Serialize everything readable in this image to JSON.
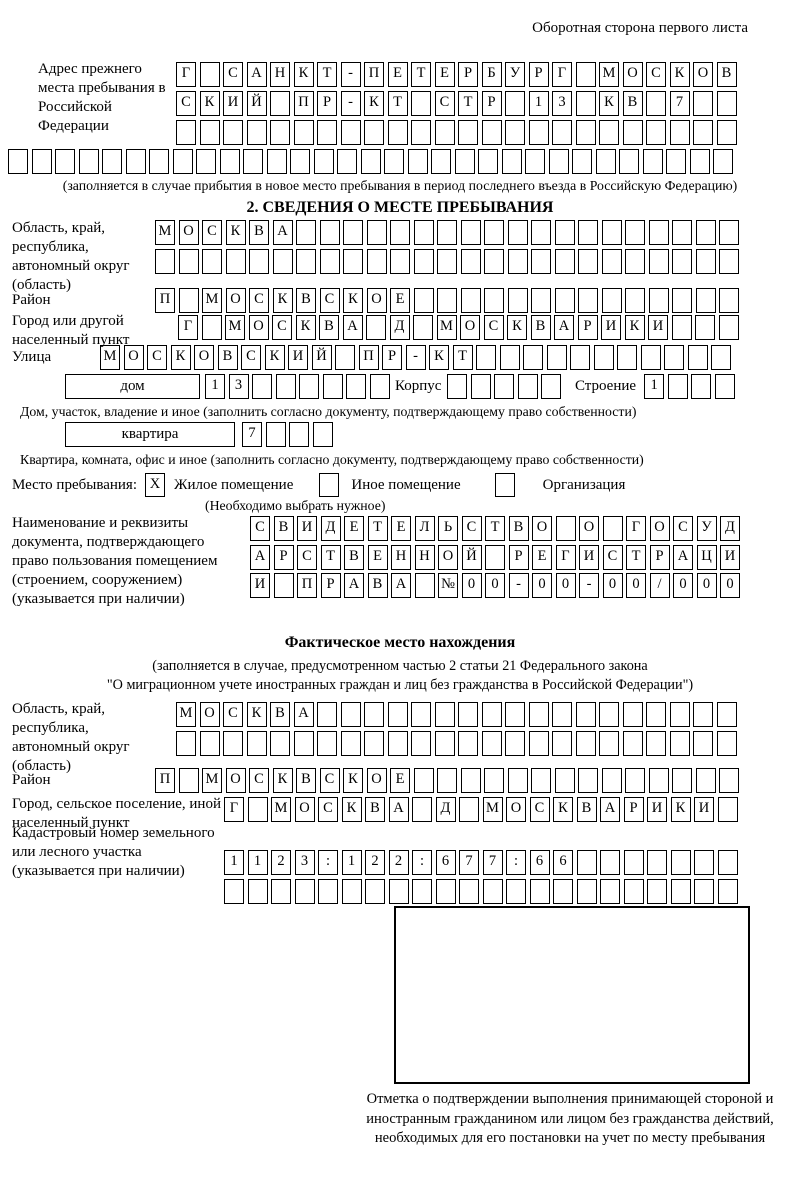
{
  "corner_note": "Оборотная сторона первого листа",
  "prev_address": {
    "label": "Адрес прежнего места пребывания в Российской Федерации",
    "row1": {
      "chars": "Г САНКТ-ПЕТЕРБУРГ МОСКОВ",
      "count": 24
    },
    "row2": {
      "chars": "СКИЙ ПР-КТ СТР 13 КВ 7",
      "count": 24
    },
    "row3": {
      "chars": "",
      "count": 24
    },
    "row4": {
      "chars": "",
      "count": 31
    },
    "note": "(заполняется в случае прибытия в новое место пребывания в период последнего въезда в Российскую Федерацию)"
  },
  "section2": {
    "title": "2. СВЕДЕНИЯ О МЕСТЕ ПРЕБЫВАНИЯ",
    "oblast": {
      "label": "Область, край, республика, автономный округ (область)",
      "row1": {
        "chars": "МОСКВА",
        "count": 25
      },
      "row2": {
        "chars": "",
        "count": 25
      }
    },
    "raion": {
      "label": "Район",
      "row": {
        "chars": "П МОСКВСКОЕ",
        "count": 25
      }
    },
    "gorod": {
      "label": "Город или другой населенный пункт",
      "row": {
        "chars": "Г МОСКВА Д МОСКВАРИКИ",
        "count": 24
      }
    },
    "ulitsa": {
      "label": "Улица",
      "row": {
        "chars": "МОСКОВСКИЙ ПР-КТ",
        "count": 27
      }
    },
    "dom": {
      "box_label": "дом",
      "cells": {
        "chars": "13",
        "count": 8
      },
      "korpus_label": "Корпус",
      "korpus_cells": {
        "chars": "",
        "count": 5
      },
      "stroenie_label": "Строение",
      "stroenie_cells": {
        "chars": "1",
        "count": 4
      },
      "note": "Дом, участок, владение и иное (заполнить согласно документу, подтверждающему право собственности)"
    },
    "kvartira": {
      "box_label": "квартира",
      "cells": {
        "chars": "7",
        "count": 4
      },
      "note": "Квартира, комната, офис и иное (заполнить согласно документу, подтверждающему право собственности)"
    },
    "mesto": {
      "label": "Место пребывания:",
      "options": [
        {
          "label": "Жилое помещение",
          "mark": "X"
        },
        {
          "label": "Иное помещение",
          "mark": ""
        },
        {
          "label": "Организация",
          "mark": ""
        }
      ],
      "note": "(Необходимо выбрать нужное)"
    },
    "doc": {
      "label": "Наименование и реквизиты документа, подтверждающего право пользования помещением (строением, сооружением) (указывается при наличии)",
      "row1": {
        "chars": "СВИДЕТЕЛЬСТВО О ГОСУД",
        "count": 21
      },
      "row2": {
        "chars": "АРСТВЕННОЙ РЕГИСТРАЦИ",
        "count": 21
      },
      "row3": {
        "chars": "И ПРАВА №00-00-00/000",
        "count": 21
      }
    }
  },
  "fact": {
    "title": "Фактическое место нахождения",
    "note1": "(заполняется в случае, предусмотренном частью 2 статьи 21 Федерального закона",
    "note2": "\"О миграционном учете иностранных граждан и лиц без гражданства в Российской Федерации\")",
    "oblast": {
      "label": "Область, край, республика, автономный округ (область)",
      "row1": {
        "chars": "МОСКВА",
        "count": 24
      },
      "row2": {
        "chars": "",
        "count": 24
      }
    },
    "raion": {
      "label": "Район",
      "row": {
        "chars": "П МОСКВСКОЕ",
        "count": 25
      }
    },
    "gorod": {
      "label": "Город, сельское поселение, иной населенный пункт",
      "row": {
        "chars": "Г МОСКВА Д МОСКВАРИКИ",
        "count": 22
      }
    },
    "kadastr": {
      "label": "Кадастровый номер земельного или лесного участка (указывается при наличии)",
      "row1": {
        "chars": "1123:122:677:66",
        "count": 22
      },
      "row2": {
        "chars": "",
        "count": 22
      }
    },
    "stamp_caption": "Отметка о подтверждении выполнения принимающей стороной и иностранным гражданином или лицом без гражданства действий, необходимых для его постановки на учет по месту пребывания"
  }
}
